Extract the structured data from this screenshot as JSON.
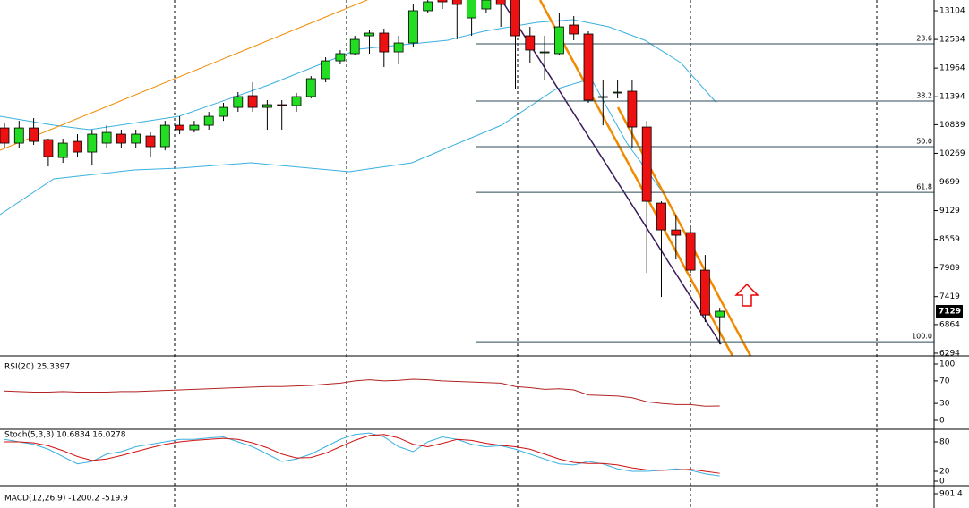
{
  "chart_data": [
    {
      "type": "candlestick",
      "open": [
        10774,
        10472,
        10774,
        10543,
        10187,
        10507,
        10294,
        10472,
        10650,
        10472,
        10614,
        10401,
        10827,
        10739,
        10827,
        11005,
        11183,
        11415,
        11183,
        11237,
        11219,
        11397,
        11753,
        12108,
        12251,
        12606,
        12660,
        12286,
        12464,
        13105,
        13407,
        13407,
        12962,
        13140,
        13496,
        13407,
        12606,
        12286,
        12251,
        12820,
        12642,
        11397,
        11486,
        11504,
        10792,
        9280,
        8746,
        8693,
        7946,
        7020
      ],
      "high": [
        10863,
        10916,
        10970,
        10561,
        10561,
        10650,
        10739,
        10827,
        10739,
        10739,
        10685,
        10916,
        11005,
        10916,
        11094,
        11272,
        11486,
        11681,
        11326,
        11326,
        11468,
        11806,
        12179,
        12322,
        12606,
        12713,
        12749,
        12606,
        13229,
        13318,
        13496,
        13496,
        13496,
        13496,
        13585,
        13496,
        12784,
        12606,
        13051,
        12998,
        12695,
        11717,
        11717,
        11717,
        10916,
        9315,
        9048,
        8835,
        8248,
        7198
      ],
      "low": [
        10383,
        10383,
        10436,
        10009,
        10080,
        10205,
        10027,
        10383,
        10383,
        10383,
        10205,
        10329,
        10650,
        10685,
        10739,
        10916,
        11094,
        11094,
        10739,
        10739,
        11094,
        11361,
        11681,
        12037,
        12215,
        12251,
        11984,
        12037,
        12393,
        13069,
        13140,
        12535,
        12606,
        13051,
        12784,
        11539,
        12073,
        11717,
        12215,
        12517,
        11272,
        10827,
        11361,
        10383,
        7892,
        7412,
        8159,
        7892,
        6914,
        6469
      ],
      "close": [
        10472,
        10774,
        10507,
        10205,
        10472,
        10294,
        10650,
        10685,
        10472,
        10650,
        10401,
        10827,
        10739,
        10827,
        11005,
        11183,
        11397,
        11183,
        11237,
        11219,
        11397,
        11753,
        12108,
        12251,
        12535,
        12660,
        12286,
        12464,
        13105,
        13282,
        13282,
        13229,
        13407,
        13318,
        13229,
        12606,
        12322,
        12286,
        12784,
        12642,
        11326,
        11397,
        11486,
        10792,
        9315,
        8746,
        8640,
        7946,
        7056,
        7129
      ],
      "up_color": "#22dd22",
      "down_color": "#ee1111",
      "ylim": [
        6240,
        13318
      ],
      "yticks": [
        13104,
        12534,
        11964,
        11394,
        10839,
        10269,
        9699,
        9129,
        8559,
        7989,
        7419,
        6864,
        6294
      ],
      "fib_levels": [
        {
          "label": "23.6",
          "price": 12446
        },
        {
          "label": "38.2",
          "price": 11308
        },
        {
          "label": "50.0",
          "price": 10401
        },
        {
          "label": "61.8",
          "price": 9493
        },
        {
          "label": "100.0",
          "price": 6522
        }
      ]
    },
    {
      "type": "line",
      "title": "RSI(20) 25.3397",
      "series": [
        {
          "color": "#b22222",
          "values": [
            52,
            51,
            50,
            50,
            51,
            50,
            50,
            50,
            51,
            51,
            52,
            53,
            54,
            55,
            56,
            57,
            58,
            59,
            60,
            60,
            61,
            62,
            64,
            66,
            70,
            72,
            70,
            71,
            73,
            72,
            70,
            69,
            68,
            67,
            66,
            60,
            58,
            55,
            56,
            54,
            45,
            44,
            43,
            40,
            33,
            30,
            28,
            28,
            25,
            25.3397
          ]
        }
      ],
      "ylim": [
        0,
        100
      ],
      "yticks": [
        100,
        70,
        30,
        0
      ]
    },
    {
      "type": "line",
      "title": "Stoch(5,3,3) 10.6834 16.0278",
      "series": [
        {
          "color": "#3ab0e0",
          "values": [
            85,
            80,
            75,
            65,
            50,
            35,
            40,
            55,
            60,
            70,
            75,
            80,
            85,
            85,
            88,
            90,
            80,
            70,
            55,
            40,
            45,
            55,
            70,
            85,
            95,
            98,
            90,
            70,
            60,
            80,
            90,
            85,
            75,
            70,
            72,
            65,
            55,
            45,
            35,
            33,
            40,
            35,
            25,
            20,
            20,
            22,
            25,
            22,
            15,
            10.6834
          ]
        },
        {
          "color": "#d01010",
          "values": [
            80,
            80,
            78,
            72,
            62,
            50,
            42,
            45,
            52,
            60,
            68,
            75,
            80,
            83,
            85,
            87,
            85,
            78,
            68,
            55,
            47,
            48,
            57,
            70,
            83,
            93,
            95,
            88,
            75,
            70,
            77,
            85,
            83,
            77,
            73,
            70,
            65,
            55,
            45,
            38,
            36,
            36,
            33,
            27,
            23,
            22,
            23,
            24,
            20,
            16.0278
          ]
        }
      ],
      "ylim": [
        0,
        100
      ],
      "yticks": [
        80,
        20,
        0
      ]
    },
    {
      "type": "indicator",
      "title": "MACD(12,26,9) -1200.2 -519.9",
      "yticks": [
        901.4
      ]
    }
  ]
}
